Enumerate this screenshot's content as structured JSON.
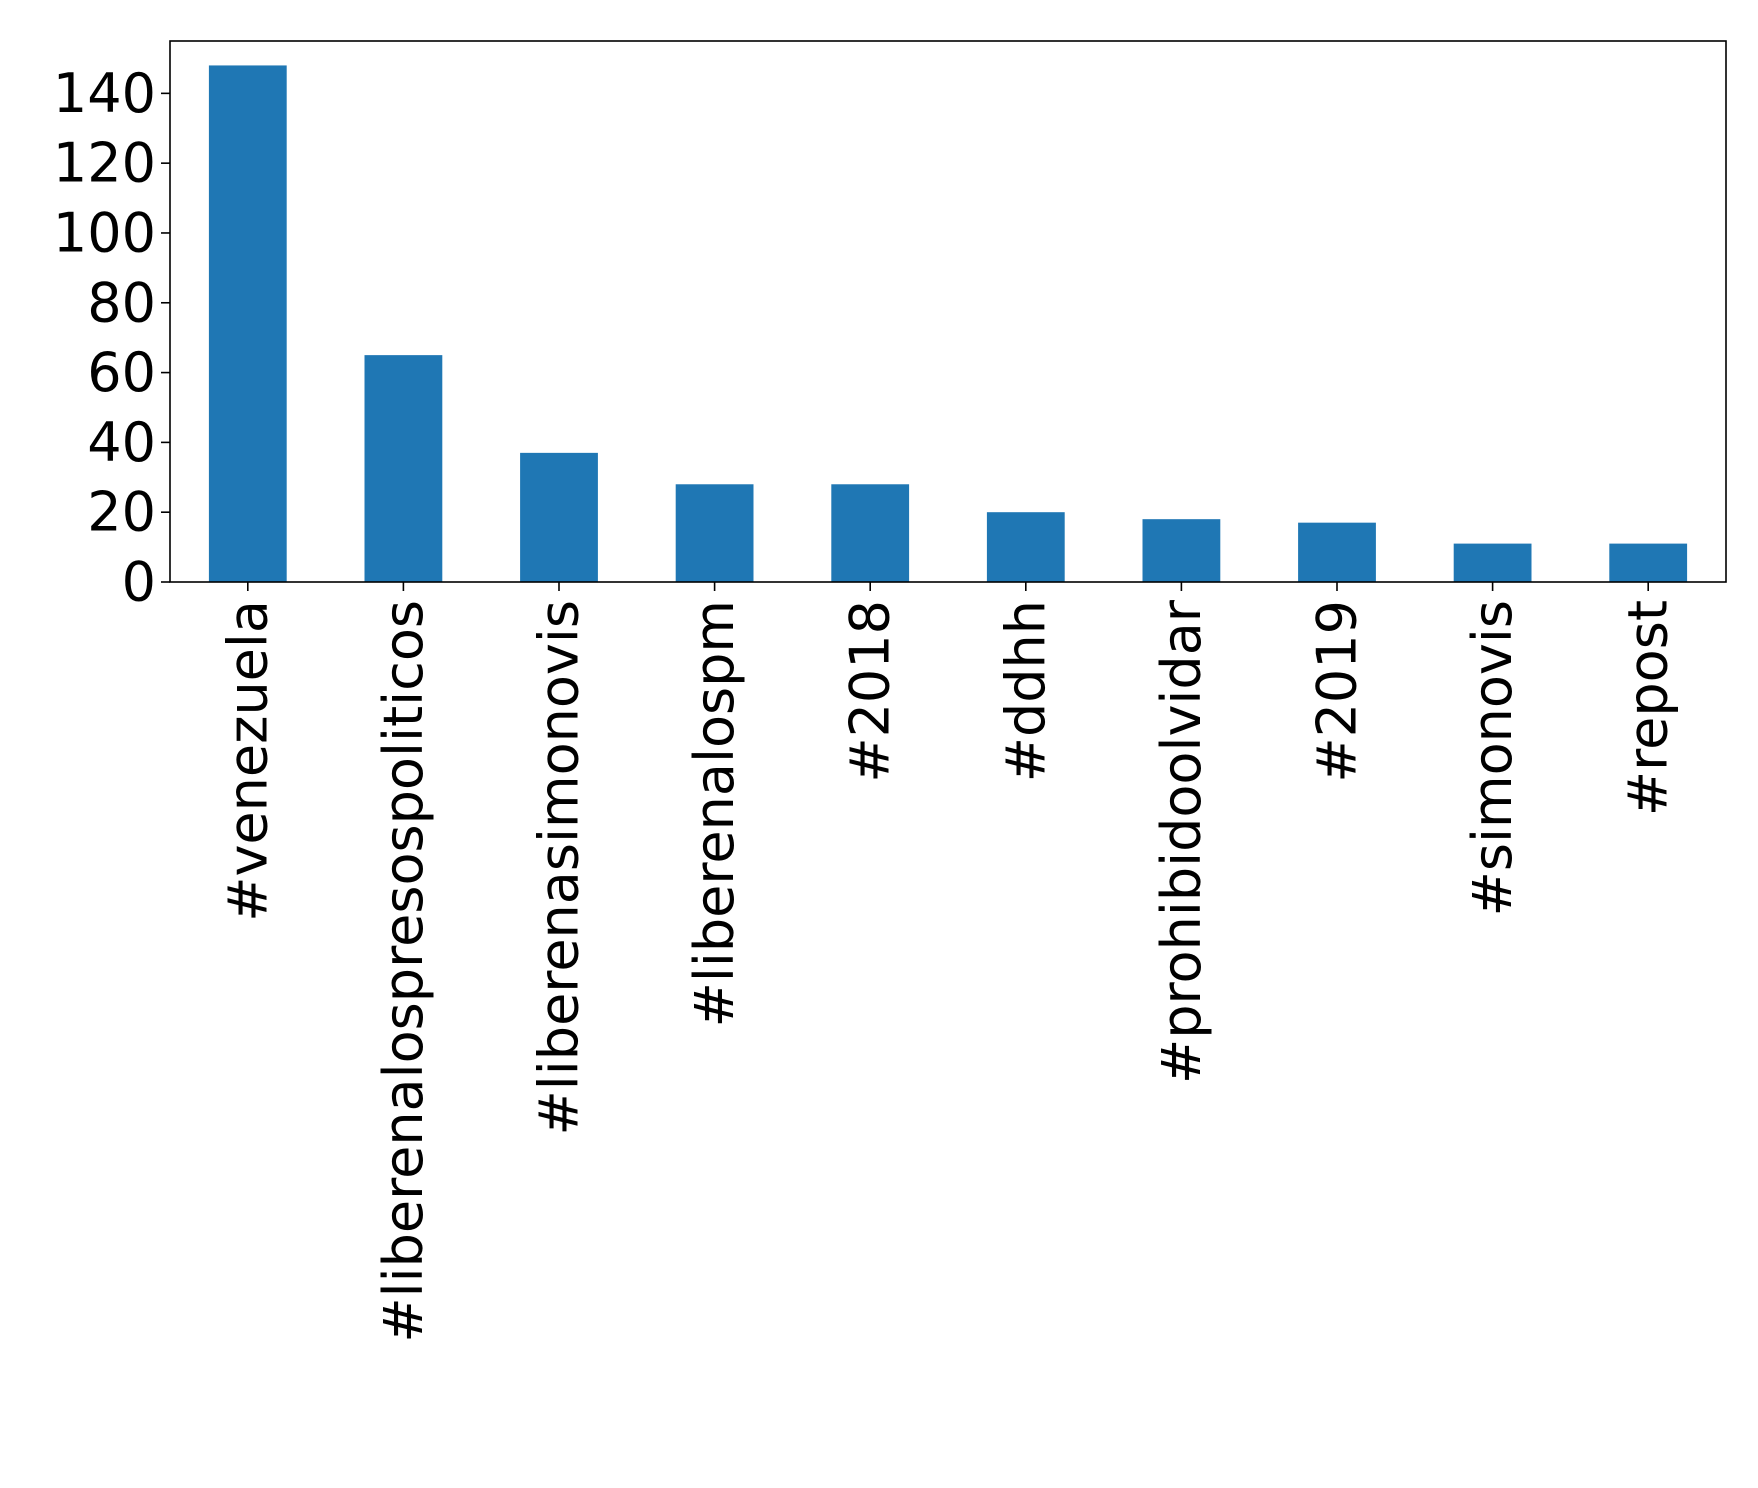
{
  "chart_data": {
    "type": "bar",
    "title": "",
    "xlabel": "",
    "ylabel": "",
    "categories": [
      "#venezuela",
      "#liberenalospresospoliticos",
      "#liberenasimonovis",
      "#liberenalospm",
      "#2018",
      "#ddhh",
      "#prohibidoolvidar",
      "#2019",
      "#simonovis",
      "#repost"
    ],
    "values": [
      148,
      65,
      37,
      28,
      28,
      20,
      18,
      17,
      11,
      11
    ],
    "ylim": [
      0,
      155
    ],
    "yticks": [
      0,
      20,
      40,
      60,
      80,
      100,
      120,
      140
    ],
    "grid": false,
    "legend": "none",
    "bar_color": "#1f77b4"
  }
}
